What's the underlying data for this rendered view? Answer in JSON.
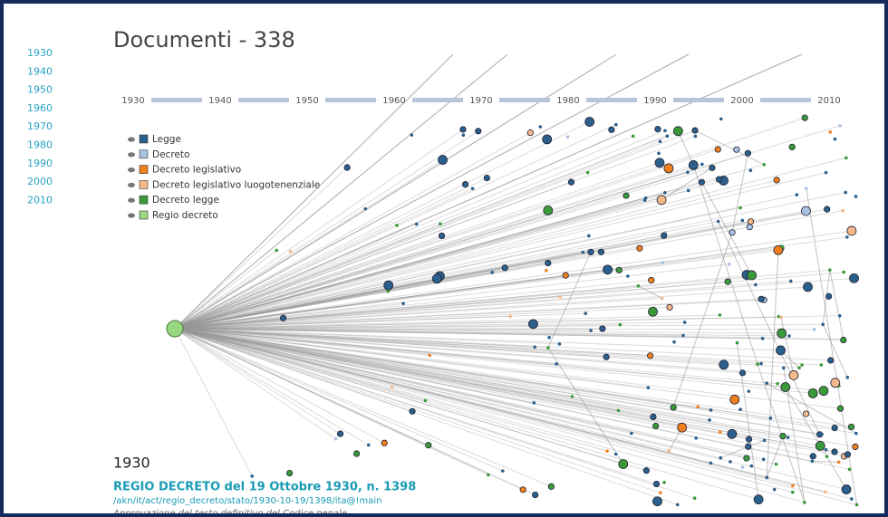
{
  "sidebar": {
    "years": [
      "1930",
      "1940",
      "1950",
      "1960",
      "1970",
      "1980",
      "1990",
      "2000",
      "2010"
    ]
  },
  "header": {
    "title": "Documenti - 338"
  },
  "timeline": {
    "labels": [
      "1930",
      "1940",
      "1950",
      "1960",
      "1970",
      "1980",
      "1990",
      "2000",
      "2010"
    ]
  },
  "legend": {
    "items": [
      {
        "label": "Legge",
        "color": "#2b5f8c"
      },
      {
        "label": "Decreto",
        "color": "#a9c2e0"
      },
      {
        "label": "Decreto legislativo",
        "color": "#f07f1e"
      },
      {
        "label": "Decreto legislativo luogotenenziale",
        "color": "#f5b98a"
      },
      {
        "label": "Decreto legge",
        "color": "#3a9a3a"
      },
      {
        "label": "Regio decreto",
        "color": "#98d883"
      }
    ]
  },
  "selection": {
    "year": "1930",
    "title": "REGIO DECRETO del 19 Ottobre 1930, n. 1398",
    "uri": "/akn/it/act/regio_decreto/stato/1930-10-19/1398/ita@!main",
    "description": "Approvazione del testo definitivo del Codice penale"
  }
}
